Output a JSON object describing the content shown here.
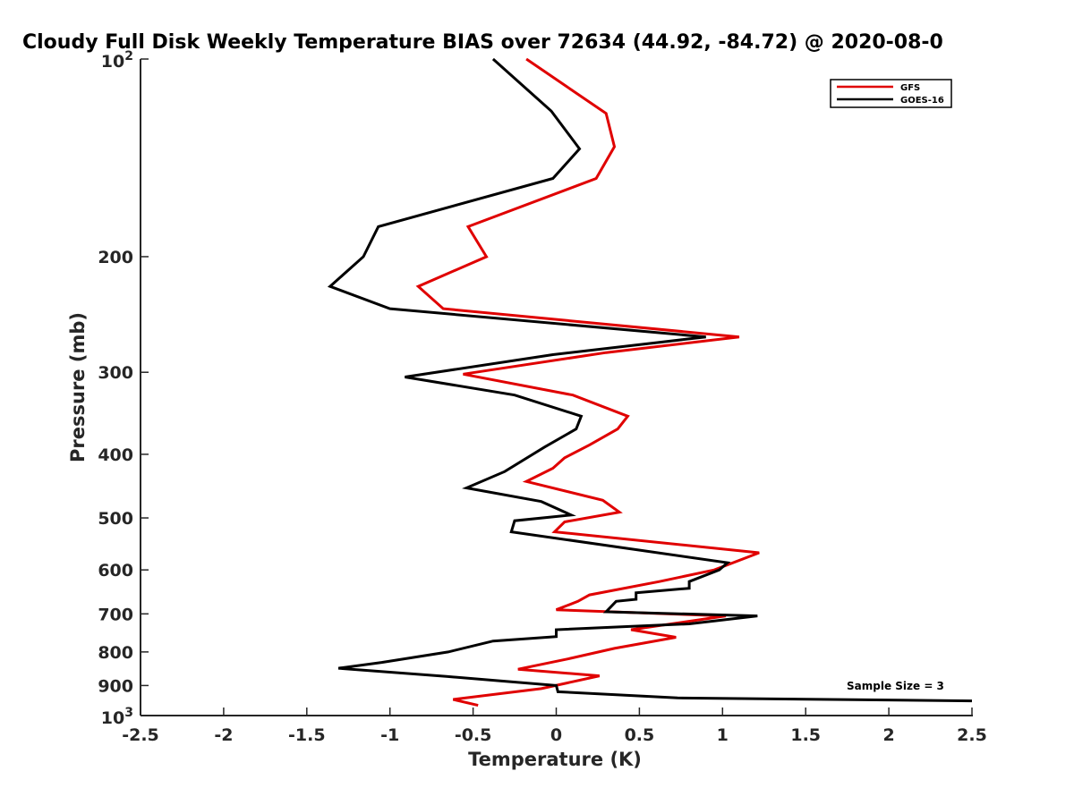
{
  "chart_data": {
    "type": "line",
    "title": "Cloudy Full Disk Weekly Temperature BIAS over 72634 (44.92, -84.72) @ 2020-08-0",
    "xlabel": "Temperature (K)",
    "ylabel": "Pressure (mb)",
    "xlim": [
      -2.5,
      2.5
    ],
    "ylim": [
      100,
      1000
    ],
    "y_scale": "log",
    "y_reversed": true,
    "grid": false,
    "legend_position": "top-right",
    "x_ticks": [
      {
        "value": -2.5,
        "label": "-2.5"
      },
      {
        "value": -2,
        "label": "-2"
      },
      {
        "value": -1.5,
        "label": "-1.5"
      },
      {
        "value": -1,
        "label": "-1"
      },
      {
        "value": -0.5,
        "label": "-0.5"
      },
      {
        "value": 0,
        "label": "0"
      },
      {
        "value": 0.5,
        "label": "0.5"
      },
      {
        "value": 1,
        "label": "1"
      },
      {
        "value": 1.5,
        "label": "1.5"
      },
      {
        "value": 2,
        "label": "2"
      },
      {
        "value": 2.5,
        "label": "2.5"
      }
    ],
    "y_ticks": [
      {
        "value": 100,
        "base": "10",
        "exp": "2"
      },
      {
        "value": 200,
        "label": "200"
      },
      {
        "value": 300,
        "label": "300"
      },
      {
        "value": 400,
        "label": "400"
      },
      {
        "value": 500,
        "label": "500"
      },
      {
        "value": 600,
        "label": "600"
      },
      {
        "value": 700,
        "label": "700"
      },
      {
        "value": 800,
        "label": "800"
      },
      {
        "value": 900,
        "label": "900"
      },
      {
        "value": 1000,
        "base": "10",
        "exp": "3"
      }
    ],
    "annotation": "Sample Size = 3",
    "series": [
      {
        "name": "GFS",
        "color": "#e00000",
        "points": [
          {
            "x": -0.18,
            "p": 100
          },
          {
            "x": 0.3,
            "p": 121
          },
          {
            "x": 0.35,
            "p": 136
          },
          {
            "x": 0.24,
            "p": 152
          },
          {
            "x": -0.53,
            "p": 180
          },
          {
            "x": -0.42,
            "p": 200
          },
          {
            "x": -0.83,
            "p": 222
          },
          {
            "x": -0.68,
            "p": 240
          },
          {
            "x": 1.1,
            "p": 265
          },
          {
            "x": 0.3,
            "p": 280
          },
          {
            "x": -0.56,
            "p": 302
          },
          {
            "x": 0.1,
            "p": 325
          },
          {
            "x": 0.43,
            "p": 350
          },
          {
            "x": 0.37,
            "p": 366
          },
          {
            "x": 0.2,
            "p": 387
          },
          {
            "x": 0.05,
            "p": 405
          },
          {
            "x": -0.02,
            "p": 420
          },
          {
            "x": -0.18,
            "p": 440
          },
          {
            "x": 0.28,
            "p": 470
          },
          {
            "x": 0.38,
            "p": 490
          },
          {
            "x": 0.05,
            "p": 507
          },
          {
            "x": -0.01,
            "p": 525
          },
          {
            "x": 1.22,
            "p": 565
          },
          {
            "x": 0.95,
            "p": 600
          },
          {
            "x": 0.62,
            "p": 625
          },
          {
            "x": 0.2,
            "p": 655
          },
          {
            "x": 0.13,
            "p": 670
          },
          {
            "x": 0.0,
            "p": 690
          },
          {
            "x": 1.02,
            "p": 705
          },
          {
            "x": 0.45,
            "p": 740
          },
          {
            "x": 0.72,
            "p": 760
          },
          {
            "x": 0.35,
            "p": 790
          },
          {
            "x": 0.07,
            "p": 820
          },
          {
            "x": -0.23,
            "p": 850
          },
          {
            "x": 0.26,
            "p": 870
          },
          {
            "x": -0.09,
            "p": 910
          },
          {
            "x": -0.62,
            "p": 945
          },
          {
            "x": -0.47,
            "p": 965
          }
        ]
      },
      {
        "name": "GOES-16",
        "color": "#000000",
        "points": [
          {
            "x": -0.38,
            "p": 100
          },
          {
            "x": -0.03,
            "p": 120
          },
          {
            "x": 0.14,
            "p": 137
          },
          {
            "x": -0.02,
            "p": 152
          },
          {
            "x": -1.07,
            "p": 180
          },
          {
            "x": -1.16,
            "p": 200
          },
          {
            "x": -1.36,
            "p": 222
          },
          {
            "x": -1.0,
            "p": 240
          },
          {
            "x": 0.9,
            "p": 265
          },
          {
            "x": -0.02,
            "p": 282
          },
          {
            "x": -0.91,
            "p": 305
          },
          {
            "x": -0.25,
            "p": 325
          },
          {
            "x": 0.15,
            "p": 350
          },
          {
            "x": 0.12,
            "p": 366
          },
          {
            "x": -0.07,
            "p": 390
          },
          {
            "x": -0.31,
            "p": 425
          },
          {
            "x": -0.54,
            "p": 450
          },
          {
            "x": -0.09,
            "p": 472
          },
          {
            "x": 0.09,
            "p": 495
          },
          {
            "x": -0.25,
            "p": 505
          },
          {
            "x": -0.27,
            "p": 525
          },
          {
            "x": 1.03,
            "p": 585
          },
          {
            "x": 0.98,
            "p": 600
          },
          {
            "x": 0.8,
            "p": 625
          },
          {
            "x": 0.8,
            "p": 640
          },
          {
            "x": 0.48,
            "p": 650
          },
          {
            "x": 0.48,
            "p": 665
          },
          {
            "x": 0.36,
            "p": 670
          },
          {
            "x": 0.3,
            "p": 695
          },
          {
            "x": 1.21,
            "p": 705
          },
          {
            "x": 0.8,
            "p": 725
          },
          {
            "x": 0.0,
            "p": 740
          },
          {
            "x": 0.0,
            "p": 758
          },
          {
            "x": -0.38,
            "p": 770
          },
          {
            "x": -0.65,
            "p": 800
          },
          {
            "x": -1.05,
            "p": 830
          },
          {
            "x": -1.31,
            "p": 847
          },
          {
            "x": -0.66,
            "p": 872
          },
          {
            "x": 0.0,
            "p": 900
          },
          {
            "x": 0.01,
            "p": 920
          },
          {
            "x": 0.73,
            "p": 940
          },
          {
            "x": 2.5,
            "p": 950
          }
        ]
      }
    ]
  }
}
